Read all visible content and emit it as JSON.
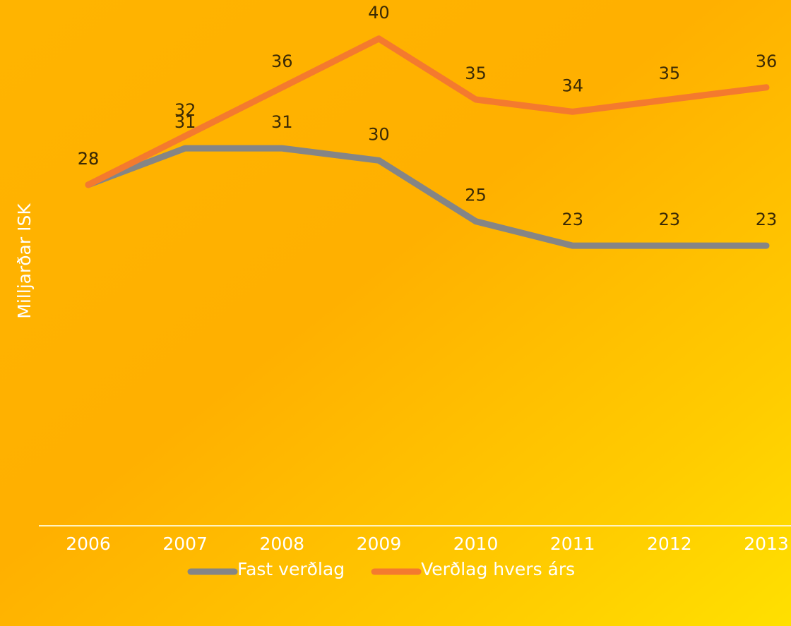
{
  "chart_data": {
    "type": "line",
    "y_axis_label": "Milljarðar ISK",
    "categories": [
      "2006",
      "2007",
      "2008",
      "2009",
      "2010",
      "2011",
      "2012",
      "2013"
    ],
    "series": [
      {
        "name": "Fast verðlag",
        "color": "#858585",
        "values": [
          28,
          31,
          31,
          30,
          25,
          23,
          23,
          23
        ]
      },
      {
        "name": "Verðlag hvers árs",
        "color": "#f47a2e",
        "values": [
          28,
          32,
          36,
          40,
          35,
          34,
          35,
          36
        ]
      }
    ],
    "ylim": [
      0,
      43
    ],
    "legend": "bottom"
  }
}
